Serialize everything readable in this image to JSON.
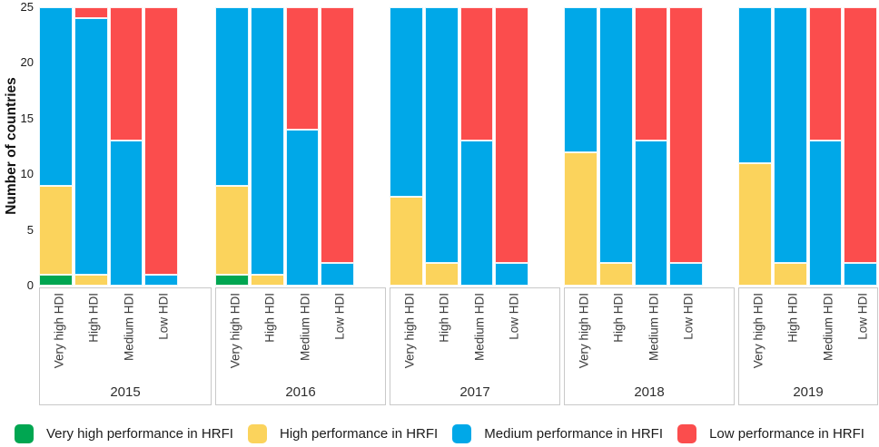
{
  "chart_data": {
    "type": "bar",
    "stacked": true,
    "ylabel": "Number of countries",
    "y_ticks": [
      0,
      5,
      10,
      15,
      20,
      25
    ],
    "ylim": [
      0,
      25
    ],
    "grid": false,
    "legend_position": "bottom",
    "categories": [
      "Very high HDI",
      "High HDI",
      "Medium HDI",
      "Low HDI"
    ],
    "series_order": [
      "very_high",
      "high",
      "medium",
      "low"
    ],
    "series_names": {
      "very_high": "Very high performance in HRFI",
      "high": "High performance in HRFI",
      "medium": "Medium performance in HRFI",
      "low": "Low performance in HRFI"
    },
    "series_colors": {
      "very_high": "#00a651",
      "high": "#fbd35c",
      "medium": "#00a8e8",
      "low": "#fb4d4d"
    },
    "facets": [
      {
        "year": "2015",
        "stacks": [
          [
            1,
            8,
            16,
            0
          ],
          [
            0,
            1,
            23,
            1
          ],
          [
            0,
            0,
            13,
            12
          ],
          [
            0,
            0,
            1,
            24
          ]
        ]
      },
      {
        "year": "2016",
        "stacks": [
          [
            1,
            8,
            16,
            0
          ],
          [
            0,
            1,
            24,
            0
          ],
          [
            0,
            0,
            14,
            11
          ],
          [
            0,
            0,
            2,
            23
          ]
        ]
      },
      {
        "year": "2017",
        "stacks": [
          [
            0,
            8,
            17,
            0
          ],
          [
            0,
            2,
            23,
            0
          ],
          [
            0,
            0,
            13,
            12
          ],
          [
            0,
            0,
            2,
            23
          ]
        ]
      },
      {
        "year": "2018",
        "stacks": [
          [
            0,
            12,
            13,
            0
          ],
          [
            0,
            2,
            23,
            0
          ],
          [
            0,
            0,
            13,
            12
          ],
          [
            0,
            0,
            2,
            23
          ]
        ]
      },
      {
        "year": "2019",
        "stacks": [
          [
            0,
            11,
            14,
            0
          ],
          [
            0,
            2,
            23,
            0
          ],
          [
            0,
            0,
            13,
            12
          ],
          [
            0,
            0,
            2,
            23
          ]
        ]
      }
    ]
  },
  "y_axis": {
    "label": "Number of countries"
  },
  "legend": {
    "items": [
      {
        "label": "Very high performance in HRFI",
        "color": "#00a651"
      },
      {
        "label": "High performance in HRFI",
        "color": "#fbd35c"
      },
      {
        "label": "Medium performance in HRFI",
        "color": "#00a8e8"
      },
      {
        "label": "Low performance in HRFI",
        "color": "#fb4d4d"
      }
    ]
  }
}
